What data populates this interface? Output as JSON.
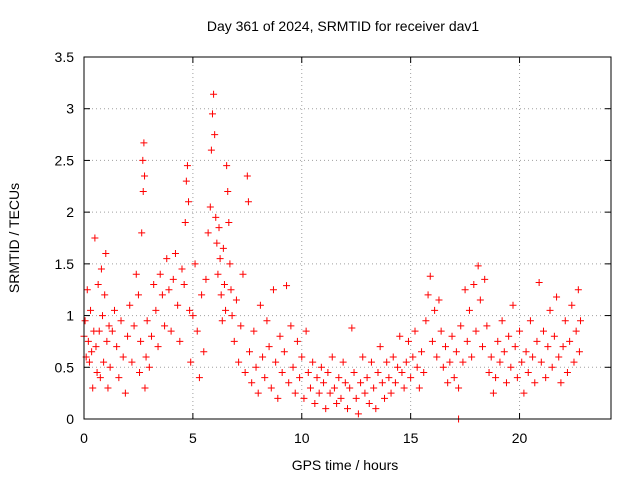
{
  "chart_data": {
    "type": "scatter",
    "title": "Day 361 of 2024, SRMTID for receiver dav1",
    "xlabel": "GPS time / hours",
    "ylabel": "SRMTID / TECUs",
    "xlim": [
      0,
      24.2
    ],
    "ylim": [
      0,
      3.5
    ],
    "x_ticks": [
      0,
      5,
      10,
      15,
      20
    ],
    "x_tick_labels": [
      "0",
      "5",
      "10",
      "15",
      "20"
    ],
    "y_ticks": [
      0,
      0.5,
      1,
      1.5,
      2,
      2.5,
      3,
      3.5
    ],
    "y_tick_labels": [
      "0",
      "0.5",
      "1",
      "1.5",
      "2",
      "2.5",
      "3",
      "3.5"
    ],
    "grid": true,
    "marker": "+",
    "series": [
      {
        "name": "dav1",
        "color": "#ff0000",
        "points": [
          [
            0.0,
            0.8
          ],
          [
            0.05,
            0.95
          ],
          [
            0.1,
            0.6
          ],
          [
            0.15,
            1.25
          ],
          [
            0.2,
            0.75
          ],
          [
            0.25,
            0.55
          ],
          [
            0.3,
            1.05
          ],
          [
            0.35,
            0.65
          ],
          [
            0.4,
            0.3
          ],
          [
            0.45,
            0.85
          ],
          [
            0.5,
            1.75
          ],
          [
            0.55,
            0.7
          ],
          [
            0.6,
            0.45
          ],
          [
            0.65,
            1.3
          ],
          [
            0.7,
            0.85
          ],
          [
            0.75,
            0.4
          ],
          [
            0.8,
            1.45
          ],
          [
            0.85,
            1.0
          ],
          [
            0.9,
            0.55
          ],
          [
            0.95,
            1.2
          ],
          [
            1.0,
            1.6
          ],
          [
            1.05,
            0.75
          ],
          [
            1.1,
            0.3
          ],
          [
            1.15,
            0.9
          ],
          [
            1.2,
            0.5
          ],
          [
            1.3,
            0.85
          ],
          [
            1.4,
            1.05
          ],
          [
            1.5,
            0.7
          ],
          [
            1.6,
            0.4
          ],
          [
            1.7,
            0.95
          ],
          [
            1.8,
            0.6
          ],
          [
            1.9,
            0.25
          ],
          [
            2.0,
            0.8
          ],
          [
            2.1,
            1.1
          ],
          [
            2.2,
            0.55
          ],
          [
            2.3,
            0.9
          ],
          [
            2.4,
            1.4
          ],
          [
            2.5,
            1.2
          ],
          [
            2.55,
            0.45
          ],
          [
            2.6,
            0.75
          ],
          [
            2.65,
            1.8
          ],
          [
            2.7,
            2.5
          ],
          [
            2.72,
            2.2
          ],
          [
            2.75,
            2.67
          ],
          [
            2.78,
            2.35
          ],
          [
            2.8,
            0.3
          ],
          [
            2.85,
            0.6
          ],
          [
            2.9,
            0.95
          ],
          [
            3.0,
            0.5
          ],
          [
            3.1,
            0.8
          ],
          [
            3.2,
            1.3
          ],
          [
            3.3,
            1.05
          ],
          [
            3.4,
            0.7
          ],
          [
            3.5,
            1.4
          ],
          [
            3.6,
            1.2
          ],
          [
            3.7,
            0.9
          ],
          [
            3.8,
            1.55
          ],
          [
            3.9,
            1.25
          ],
          [
            4.0,
            0.85
          ],
          [
            4.1,
            1.35
          ],
          [
            4.2,
            1.6
          ],
          [
            4.3,
            1.1
          ],
          [
            4.4,
            0.75
          ],
          [
            4.5,
            1.45
          ],
          [
            4.6,
            1.3
          ],
          [
            4.65,
            1.9
          ],
          [
            4.7,
            2.3
          ],
          [
            4.75,
            2.45
          ],
          [
            4.8,
            2.1
          ],
          [
            4.85,
            1.05
          ],
          [
            4.9,
            0.55
          ],
          [
            5.0,
            1.0
          ],
          [
            5.1,
            1.5
          ],
          [
            5.2,
            0.85
          ],
          [
            5.3,
            0.4
          ],
          [
            5.4,
            1.2
          ],
          [
            5.5,
            0.65
          ],
          [
            5.6,
            1.35
          ],
          [
            5.7,
            1.8
          ],
          [
            5.8,
            2.05
          ],
          [
            5.85,
            2.6
          ],
          [
            5.9,
            2.95
          ],
          [
            5.95,
            3.14
          ],
          [
            6.0,
            2.75
          ],
          [
            6.05,
            1.95
          ],
          [
            6.1,
            1.7
          ],
          [
            6.15,
            1.4
          ],
          [
            6.2,
            1.85
          ],
          [
            6.25,
            1.55
          ],
          [
            6.3,
            1.2
          ],
          [
            6.35,
            0.95
          ],
          [
            6.4,
            1.65
          ],
          [
            6.45,
            1.3
          ],
          [
            6.5,
            1.05
          ],
          [
            6.55,
            2.45
          ],
          [
            6.6,
            2.2
          ],
          [
            6.65,
            1.9
          ],
          [
            6.7,
            1.5
          ],
          [
            6.75,
            1.25
          ],
          [
            6.8,
            1.0
          ],
          [
            6.9,
            0.75
          ],
          [
            7.0,
            1.15
          ],
          [
            7.1,
            0.55
          ],
          [
            7.2,
            0.9
          ],
          [
            7.3,
            1.4
          ],
          [
            7.4,
            0.45
          ],
          [
            7.5,
            2.35
          ],
          [
            7.55,
            2.1
          ],
          [
            7.6,
            0.65
          ],
          [
            7.7,
            0.35
          ],
          [
            7.8,
            0.85
          ],
          [
            7.9,
            0.5
          ],
          [
            8.0,
            0.25
          ],
          [
            8.1,
            1.1
          ],
          [
            8.2,
            0.6
          ],
          [
            8.3,
            0.4
          ],
          [
            8.4,
            0.95
          ],
          [
            8.5,
            0.7
          ],
          [
            8.6,
            0.3
          ],
          [
            8.7,
            1.25
          ],
          [
            8.8,
            0.55
          ],
          [
            8.9,
            0.2
          ],
          [
            9.0,
            0.8
          ],
          [
            9.1,
            0.45
          ],
          [
            9.2,
            0.65
          ],
          [
            9.3,
            1.29
          ],
          [
            9.4,
            0.35
          ],
          [
            9.5,
            0.9
          ],
          [
            9.6,
            0.5
          ],
          [
            9.7,
            0.25
          ],
          [
            9.8,
            0.75
          ],
          [
            9.9,
            0.4
          ],
          [
            10.0,
            0.6
          ],
          [
            10.1,
            0.2
          ],
          [
            10.2,
            0.85
          ],
          [
            10.3,
            0.45
          ],
          [
            10.4,
            0.3
          ],
          [
            10.5,
            0.55
          ],
          [
            10.6,
            0.15
          ],
          [
            10.7,
            0.4
          ],
          [
            10.8,
            0.25
          ],
          [
            10.9,
            0.5
          ],
          [
            11.0,
            0.35
          ],
          [
            11.1,
            0.1
          ],
          [
            11.2,
            0.45
          ],
          [
            11.3,
            0.25
          ],
          [
            11.4,
            0.6
          ],
          [
            11.5,
            0.3
          ],
          [
            11.6,
            0.15
          ],
          [
            11.7,
            0.4
          ],
          [
            11.8,
            0.2
          ],
          [
            11.9,
            0.55
          ],
          [
            12.0,
            0.35
          ],
          [
            12.1,
            0.1
          ],
          [
            12.2,
            0.3
          ],
          [
            12.3,
            0.88
          ],
          [
            12.4,
            0.45
          ],
          [
            12.5,
            0.2
          ],
          [
            12.6,
            0.05
          ],
          [
            12.7,
            0.35
          ],
          [
            12.8,
            0.6
          ],
          [
            12.9,
            0.25
          ],
          [
            13.0,
            0.4
          ],
          [
            13.1,
            0.15
          ],
          [
            13.2,
            0.55
          ],
          [
            13.3,
            0.3
          ],
          [
            13.4,
            0.1
          ],
          [
            13.5,
            0.45
          ],
          [
            13.6,
            0.7
          ],
          [
            13.7,
            0.35
          ],
          [
            13.8,
            0.2
          ],
          [
            13.9,
            0.55
          ],
          [
            14.0,
            0.4
          ],
          [
            14.1,
            0.25
          ],
          [
            14.2,
            0.6
          ],
          [
            14.3,
            0.35
          ],
          [
            14.4,
            0.5
          ],
          [
            14.5,
            0.8
          ],
          [
            14.6,
            0.45
          ],
          [
            14.7,
            0.3
          ],
          [
            14.8,
            0.55
          ],
          [
            14.9,
            0.75
          ],
          [
            15.0,
            0.4
          ],
          [
            15.1,
            0.6
          ],
          [
            15.2,
            0.85
          ],
          [
            15.3,
            0.5
          ],
          [
            15.4,
            0.3
          ],
          [
            15.5,
            0.65
          ],
          [
            15.6,
            0.45
          ],
          [
            15.7,
            0.95
          ],
          [
            15.8,
            1.2
          ],
          [
            15.9,
            1.38
          ],
          [
            16.0,
            0.75
          ],
          [
            16.1,
            1.05
          ],
          [
            16.2,
            0.6
          ],
          [
            16.3,
            1.15
          ],
          [
            16.4,
            0.85
          ],
          [
            16.5,
            0.5
          ],
          [
            16.6,
            0.7
          ],
          [
            16.7,
            0.35
          ],
          [
            16.8,
            0.55
          ],
          [
            16.9,
            0.8
          ],
          [
            17.0,
            0.4
          ],
          [
            17.1,
            0.65
          ],
          [
            17.2,
            0.3
          ],
          [
            17.3,
            0.9
          ],
          [
            17.4,
            0.55
          ],
          [
            17.5,
            1.25
          ],
          [
            17.6,
            0.75
          ],
          [
            17.7,
            1.05
          ],
          [
            17.8,
            0.6
          ],
          [
            17.9,
            1.3
          ],
          [
            18.0,
            0.85
          ],
          [
            18.1,
            1.48
          ],
          [
            18.2,
            1.15
          ],
          [
            18.3,
            0.7
          ],
          [
            18.4,
            1.35
          ],
          [
            18.5,
            0.9
          ],
          [
            18.6,
            0.45
          ],
          [
            18.7,
            0.6
          ],
          [
            18.8,
            0.25
          ],
          [
            18.9,
            0.4
          ],
          [
            19.0,
            0.75
          ],
          [
            19.1,
            0.55
          ],
          [
            19.2,
            0.95
          ],
          [
            19.3,
            0.65
          ],
          [
            19.4,
            0.35
          ],
          [
            19.5,
            0.8
          ],
          [
            19.6,
            0.5
          ],
          [
            19.7,
            1.1
          ],
          [
            19.8,
            0.7
          ],
          [
            19.9,
            0.4
          ],
          [
            20.0,
            0.85
          ],
          [
            20.1,
            0.55
          ],
          [
            20.2,
            0.25
          ],
          [
            20.3,
            0.65
          ],
          [
            20.4,
            0.45
          ],
          [
            20.5,
            0.95
          ],
          [
            20.6,
            0.6
          ],
          [
            20.7,
            0.35
          ],
          [
            20.8,
            0.75
          ],
          [
            20.9,
            1.32
          ],
          [
            21.0,
            0.55
          ],
          [
            21.1,
            0.85
          ],
          [
            21.2,
            0.4
          ],
          [
            21.3,
            0.7
          ],
          [
            21.4,
            1.05
          ],
          [
            21.5,
            0.5
          ],
          [
            21.6,
            0.8
          ],
          [
            21.7,
            1.18
          ],
          [
            21.8,
            0.6
          ],
          [
            21.9,
            0.35
          ],
          [
            22.0,
            0.7
          ],
          [
            22.1,
            0.95
          ],
          [
            22.2,
            0.45
          ],
          [
            22.3,
            0.75
          ],
          [
            22.4,
            1.1
          ],
          [
            22.5,
            0.55
          ],
          [
            22.6,
            0.85
          ],
          [
            22.7,
            1.25
          ],
          [
            22.75,
            0.65
          ],
          [
            22.8,
            0.95
          ],
          [
            17.2,
            0.0
          ]
        ]
      }
    ]
  }
}
